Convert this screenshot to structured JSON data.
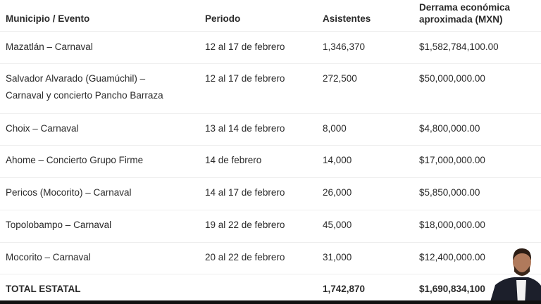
{
  "table": {
    "headers": [
      "Municipio / Evento",
      "Periodo",
      "Asistentes",
      "Derrama económica",
      "aproximada (MXN)"
    ],
    "rows": [
      {
        "evento": [
          "Mazatlán – Carnaval"
        ],
        "periodo": "12 al 17 de febrero",
        "asistentes": "1,346,370",
        "derrama": "$1,582,784,100.00"
      },
      {
        "evento": [
          "Salvador Alvarado (Guamúchil) –",
          "Carnaval y concierto Pancho Barraza"
        ],
        "periodo": "12 al 17 de febrero",
        "asistentes": "272,500",
        "derrama": "$50,000,000.00"
      },
      {
        "evento": [
          "Choix – Carnaval"
        ],
        "periodo": "13 al 14 de febrero",
        "asistentes": "8,000",
        "derrama": "$4,800,000.00"
      },
      {
        "evento": [
          "Ahome – Concierto Grupo Firme"
        ],
        "periodo": "14 de febrero",
        "asistentes": "14,000",
        "derrama": "$17,000,000.00"
      },
      {
        "evento": [
          "Pericos (Mocorito) – Carnaval"
        ],
        "periodo": "14 al 17 de febrero",
        "asistentes": "26,000",
        "derrama": "$5,850,000.00"
      },
      {
        "evento": [
          "Topolobampo – Carnaval"
        ],
        "periodo": "19 al 22 de febrero",
        "asistentes": "45,000",
        "derrama": "$18,000,000.00"
      },
      {
        "evento": [
          "Mocorito – Carnaval"
        ],
        "periodo": "20 al 22 de febrero",
        "asistentes": "31,000",
        "derrama": "$12,400,000.00"
      }
    ],
    "total": {
      "label": "TOTAL ESTATAL",
      "asistentes": "1,742,870",
      "derrama": "$1,690,834,100"
    }
  }
}
